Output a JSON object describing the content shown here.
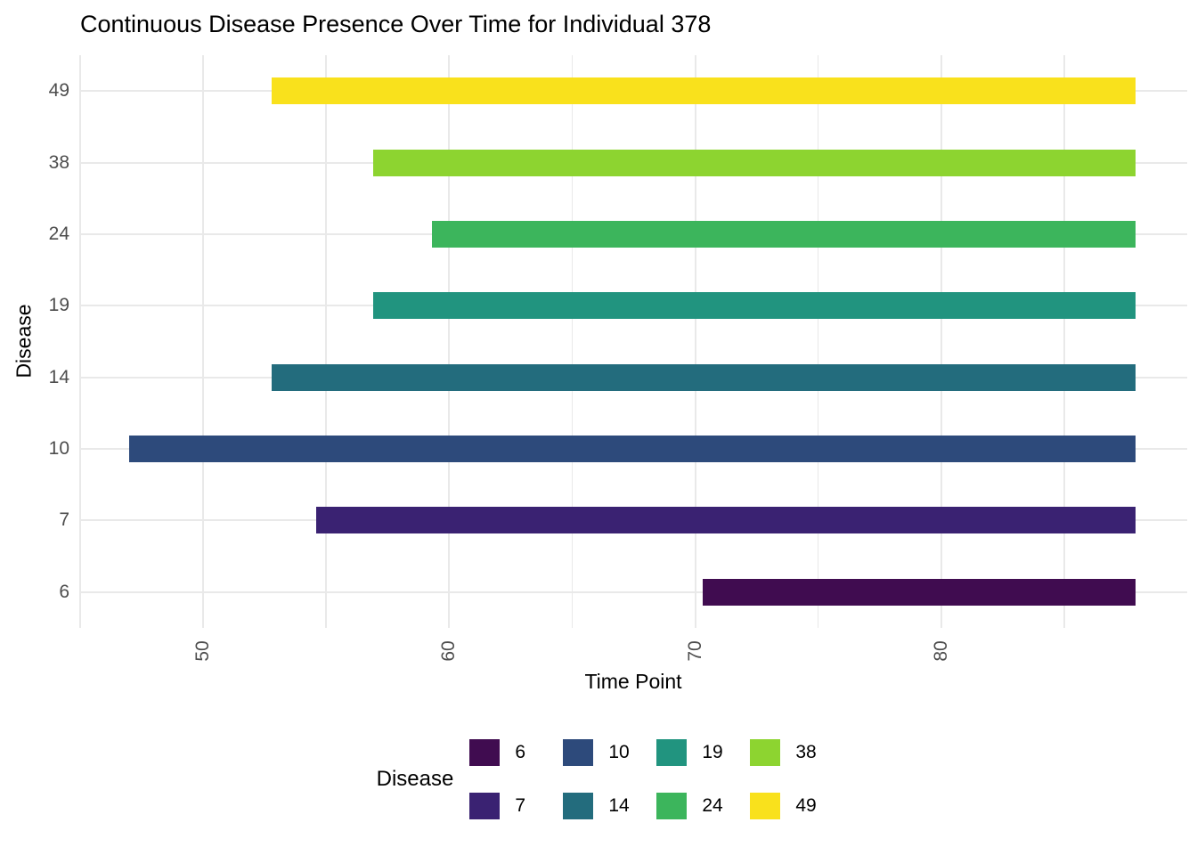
{
  "title": "Continuous Disease Presence Over Time for Individual 378",
  "chart_data": {
    "type": "bar",
    "subtype": "horizontal-range-gantt",
    "title": "Continuous Disease Presence Over Time for Individual 378",
    "xlabel": "Time Point",
    "ylabel": "Disease",
    "xlim": [
      45,
      90
    ],
    "x_major_ticks": [
      50,
      60,
      70,
      80
    ],
    "x_minor_gridlines": [
      45,
      55,
      65,
      75,
      85
    ],
    "grid": "on",
    "legend_position": "bottom",
    "rows": [
      {
        "disease": "49",
        "start": 52.8,
        "end": 87.9,
        "color": "#F9E11C"
      },
      {
        "disease": "38",
        "start": 56.9,
        "end": 87.9,
        "color": "#8DD430"
      },
      {
        "disease": "24",
        "start": 59.3,
        "end": 87.9,
        "color": "#3CB55C"
      },
      {
        "disease": "19",
        "start": 56.9,
        "end": 87.9,
        "color": "#21947F"
      },
      {
        "disease": "14",
        "start": 52.8,
        "end": 87.9,
        "color": "#236C7D"
      },
      {
        "disease": "10",
        "start": 47.0,
        "end": 87.9,
        "color": "#2D4A7B"
      },
      {
        "disease": "7",
        "start": 54.6,
        "end": 87.9,
        "color": "#3A2272"
      },
      {
        "disease": "6",
        "start": 70.3,
        "end": 87.9,
        "color": "#400C50"
      }
    ],
    "legend": {
      "title": "Disease",
      "rows": [
        [
          {
            "label": "6",
            "color": "#400C50"
          },
          {
            "label": "10",
            "color": "#2D4A7B"
          },
          {
            "label": "19",
            "color": "#21947F"
          },
          {
            "label": "38",
            "color": "#8DD430"
          }
        ],
        [
          {
            "label": "7",
            "color": "#3A2272"
          },
          {
            "label": "14",
            "color": "#236C7D"
          },
          {
            "label": "24",
            "color": "#3CB55C"
          },
          {
            "label": "49",
            "color": "#F9E11C"
          }
        ]
      ]
    }
  },
  "colors": {
    "background": "#FFFFFF",
    "grid": "#E9E9E9",
    "axis_text": "#4D4D4D",
    "title_text": "#000000"
  }
}
